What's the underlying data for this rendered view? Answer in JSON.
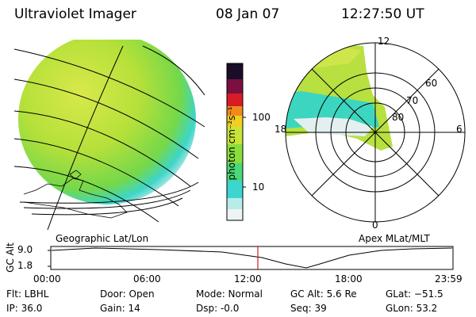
{
  "header": {
    "title": "Ultraviolet Imager",
    "date": "08 Jan 07",
    "time": "12:27:50 UT"
  },
  "colorbar": {
    "unit_label": "photon cm⁻²s⁻¹",
    "ticks": [
      "100",
      "10"
    ]
  },
  "panels": {
    "left_label": "Geographic Lat/Lon",
    "right_label": "Apex MLat/MLT"
  },
  "polar_plot": {
    "mlt_labels": {
      "top": "12",
      "left": "18",
      "right": "6",
      "bottom": "0"
    },
    "lat_labels": [
      "60",
      "70",
      "80"
    ]
  },
  "altitude_plot": {
    "ylabel": "GC Alt",
    "yticks": [
      "9.0",
      "1.8"
    ],
    "xticks": [
      "00:00",
      "06:00",
      "12:00",
      "18:00",
      "23:59"
    ],
    "marker_time": "12:27:50",
    "marker_color": "#d11c1c"
  },
  "status": {
    "flt": "Flt: LBHL",
    "ip": "IP: 36.0",
    "door": "Door: Open",
    "gain": "Gain: 14",
    "mode": "Mode: Normal",
    "dsp": "Dsp:    -0.0",
    "gcalt": "GC Alt: 5.6 Re",
    "seq": "Seq: 39",
    "glat": "GLat: −51.5",
    "glon": "GLon:   53.2"
  }
}
